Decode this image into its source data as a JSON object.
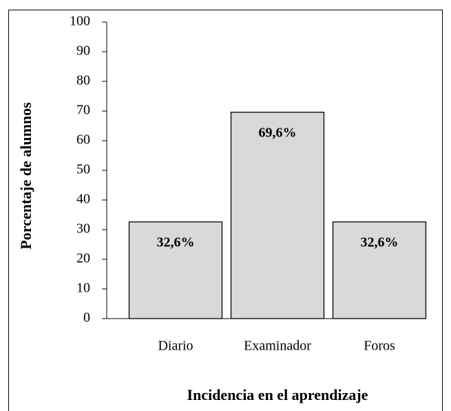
{
  "chart_data": {
    "type": "bar",
    "categories": [
      "Diario",
      "Examinador",
      "Foros"
    ],
    "values": [
      32.6,
      69.6,
      32.6
    ],
    "value_labels": [
      "32,6%",
      "69,6%",
      "32,6%"
    ],
    "color": "#d9d9d9",
    "xlabel": "Incidencia en el aprendizaje",
    "ylabel": "Porcentaje de alumnos",
    "ylim": [
      0,
      100
    ],
    "yticks": [
      0,
      10,
      20,
      30,
      40,
      50,
      60,
      70,
      80,
      90,
      100
    ],
    "grid": false
  }
}
